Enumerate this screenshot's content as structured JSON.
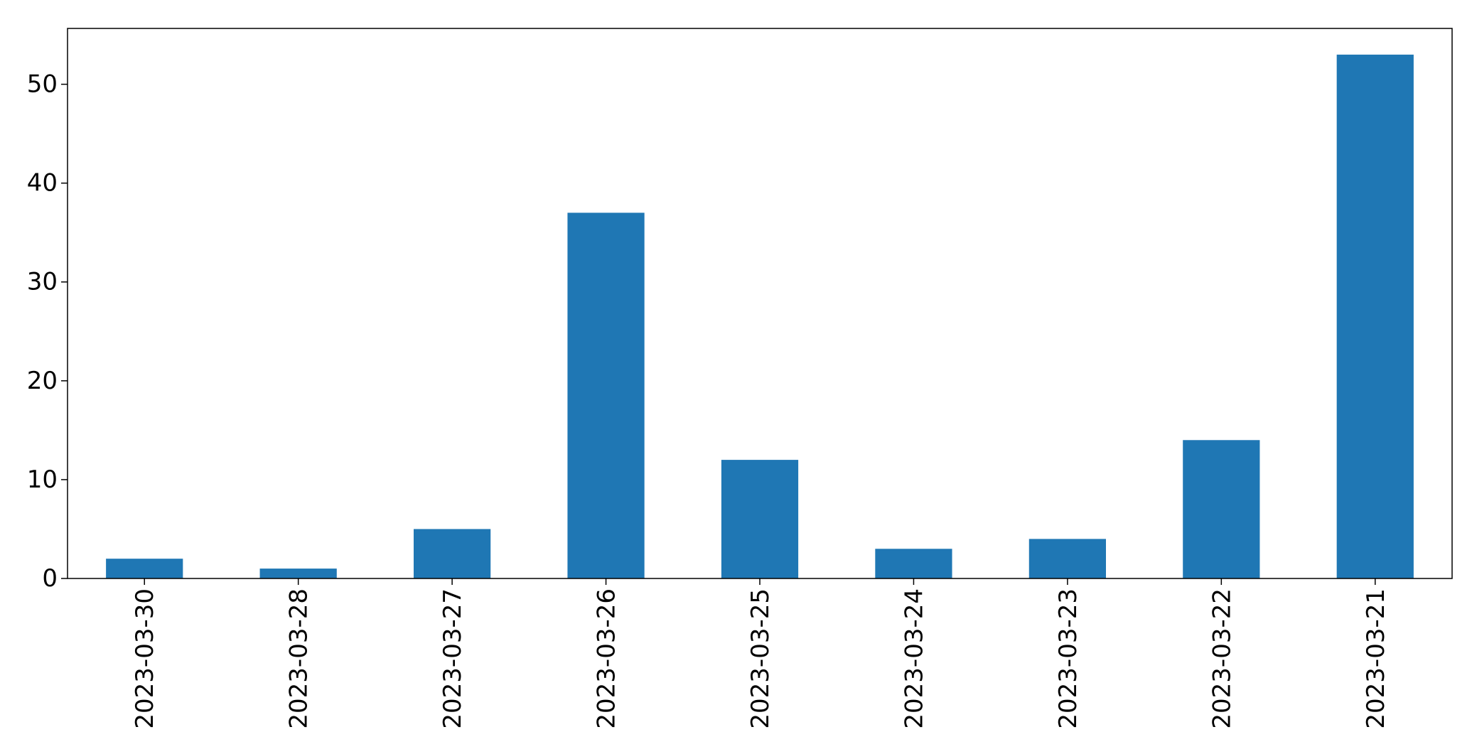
{
  "chart_data": {
    "type": "bar",
    "categories": [
      "2023-03-30",
      "2023-03-28",
      "2023-03-27",
      "2023-03-26",
      "2023-03-25",
      "2023-03-24",
      "2023-03-23",
      "2023-03-22",
      "2023-03-21"
    ],
    "values": [
      2,
      1,
      5,
      37,
      12,
      3,
      4,
      14,
      53
    ],
    "title": "",
    "xlabel": "",
    "ylabel": "",
    "ylim": [
      0,
      55.65
    ],
    "yticks": [
      0,
      10,
      20,
      30,
      40,
      50
    ],
    "grid": false,
    "legend": "none",
    "bar_color": "#1f77b4",
    "axis_color": "#000000"
  }
}
